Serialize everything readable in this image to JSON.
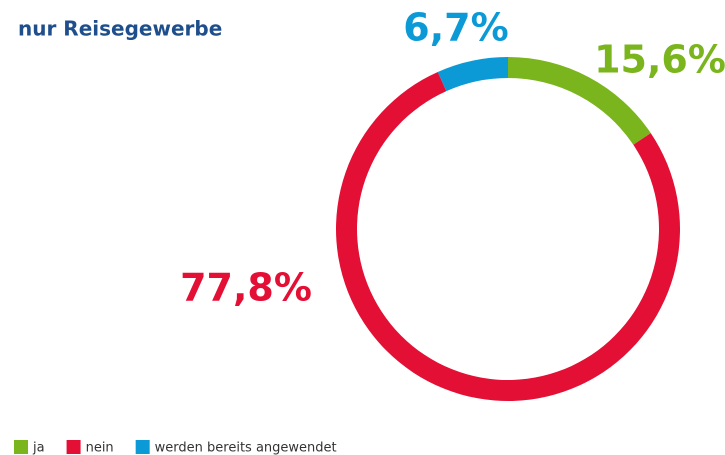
{
  "chart_data": {
    "type": "donut",
    "title": "nur Reisegewerbe",
    "categories": [
      "ja",
      "nein",
      "werden bereits angewendet"
    ],
    "values": [
      15.6,
      77.8,
      6.7
    ],
    "value_labels": [
      "15,6%",
      "77,8%",
      "6,7%"
    ],
    "colors": [
      "#7ab51d",
      "#e30f35",
      "#0b9ad6"
    ],
    "legend": "bottom-left"
  }
}
